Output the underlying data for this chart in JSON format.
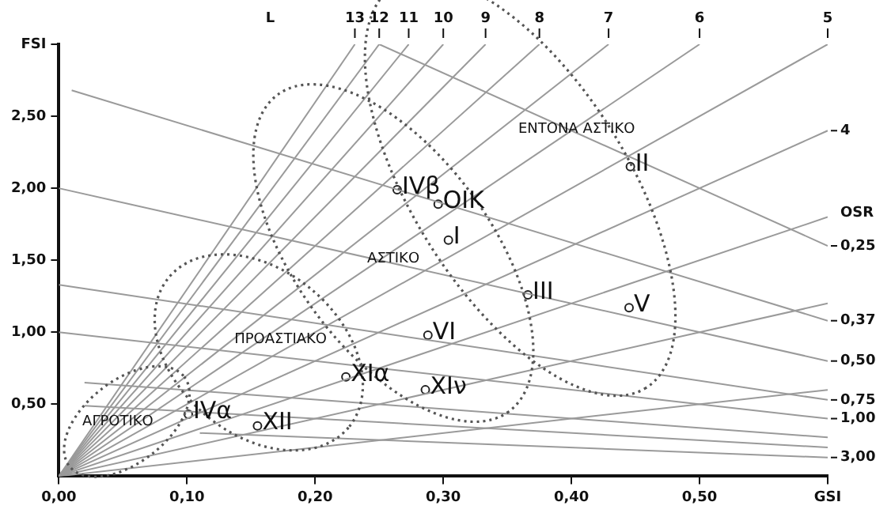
{
  "chart_data": {
    "type": "scatter",
    "x2label": "L",
    "y2label": "OSR",
    "xlim": [
      0,
      0.6
    ],
    "ylim": [
      0,
      3
    ],
    "xticks": [
      {
        "value": 0,
        "label": "0,00"
      },
      {
        "value": 0.1,
        "label": "0,10"
      },
      {
        "value": 0.2,
        "label": "0,20"
      },
      {
        "value": 0.3,
        "label": "0,30"
      },
      {
        "value": 0.4,
        "label": "0,40"
      },
      {
        "value": 0.5,
        "label": "0,50"
      },
      {
        "value": 0.6,
        "label": "GSI"
      }
    ],
    "yticks": [
      {
        "value": 0.5,
        "label": "0,50"
      },
      {
        "value": 1,
        "label": "1,00"
      },
      {
        "value": 1.5,
        "label": "1,50"
      },
      {
        "value": 2,
        "label": "2,00"
      },
      {
        "value": 2.5,
        "label": "2,50"
      },
      {
        "value": 3,
        "label": "FSI"
      }
    ],
    "grid": false,
    "legend": false,
    "annotations": [
      "ΑΓΡΟΤΙΚΟ",
      "ΠΡΟΑΣΤΙΑΚΟ",
      "ΑΣΤΙΚΟ",
      "ΕΝΤΟΝΑ ΑΣΤΙΚΟ"
    ],
    "series": [
      {
        "type": "line",
        "name": "13",
        "color": "#9a9a9a",
        "x": [
          0,
          0.231
        ],
        "values": [
          0,
          3
        ]
      },
      {
        "type": "line",
        "name": "12",
        "color": "#9a9a9a",
        "x": [
          0,
          0.25
        ],
        "values": [
          0,
          3
        ]
      },
      {
        "type": "line",
        "name": "11",
        "color": "#9a9a9a",
        "x": [
          0,
          0.273
        ],
        "values": [
          0,
          3
        ]
      },
      {
        "type": "line",
        "name": "10",
        "color": "#9a9a9a",
        "x": [
          0,
          0.3
        ],
        "values": [
          0,
          3
        ]
      },
      {
        "type": "line",
        "name": "9",
        "color": "#9a9a9a",
        "x": [
          0,
          0.333
        ],
        "values": [
          0,
          3
        ]
      },
      {
        "type": "line",
        "name": "8",
        "color": "#9a9a9a",
        "x": [
          0,
          0.375
        ],
        "values": [
          0,
          3
        ]
      },
      {
        "type": "line",
        "name": "7",
        "color": "#9a9a9a",
        "x": [
          0,
          0.429
        ],
        "values": [
          0,
          3
        ]
      },
      {
        "type": "line",
        "name": "6",
        "color": "#9a9a9a",
        "x": [
          0,
          0.5
        ],
        "values": [
          0,
          3
        ]
      },
      {
        "type": "line",
        "name": "5",
        "color": "#9a9a9a",
        "x": [
          0,
          0.6
        ],
        "values": [
          0,
          3
        ]
      },
      {
        "type": "line",
        "name": "4",
        "color": "#9a9a9a",
        "x": [
          0,
          0.6
        ],
        "values": [
          0,
          2.4
        ]
      },
      {
        "type": "line",
        "color": "#9a9a9a",
        "x": [
          0,
          0.6
        ],
        "values": [
          0,
          1.8
        ]
      },
      {
        "type": "line",
        "color": "#9a9a9a",
        "x": [
          0,
          0.6
        ],
        "values": [
          0,
          1.2
        ]
      },
      {
        "type": "line",
        "color": "#9a9a9a",
        "x": [
          0,
          0.6
        ],
        "values": [
          0,
          0.6
        ]
      },
      {
        "type": "line",
        "name": "0,25",
        "color": "#9a9a9a",
        "x": [
          0.25,
          0.6
        ],
        "values": [
          3,
          1.6
        ]
      },
      {
        "type": "line",
        "name": "0,37",
        "color": "#9a9a9a",
        "x": [
          0.01,
          0.6
        ],
        "values": [
          2.68,
          1.08
        ]
      },
      {
        "type": "line",
        "name": "0,50",
        "color": "#9a9a9a",
        "x": [
          0,
          0.6
        ],
        "values": [
          2,
          0.8
        ]
      },
      {
        "type": "line",
        "name": "0,75",
        "color": "#9a9a9a",
        "x": [
          0,
          0.6
        ],
        "values": [
          1.33,
          0.53
        ]
      },
      {
        "type": "line",
        "name": "1,00",
        "color": "#9a9a9a",
        "x": [
          0,
          0.6
        ],
        "values": [
          1,
          0.4
        ]
      },
      {
        "type": "line",
        "color": "#9a9a9a",
        "x": [
          0.02,
          0.6
        ],
        "values": [
          0.65,
          0.27
        ]
      },
      {
        "type": "line",
        "color": "#9a9a9a",
        "x": [
          0.02,
          0.6
        ],
        "values": [
          0.49,
          0.2
        ]
      },
      {
        "type": "line",
        "name": "3,00",
        "color": "#9a9a9a",
        "x": [
          0.11,
          0.6
        ],
        "values": [
          0.3,
          0.13
        ]
      },
      {
        "name": "IVβ",
        "color": "#222222",
        "marker": "circle",
        "x": [
          0.264
        ],
        "values": [
          1.99
        ]
      },
      {
        "name": "OIK",
        "color": "#222222",
        "marker": "circle",
        "x": [
          0.296
        ],
        "values": [
          1.89
        ]
      },
      {
        "name": "I",
        "color": "#222222",
        "marker": "circle",
        "x": [
          0.304
        ],
        "values": [
          1.64
        ]
      },
      {
        "name": "II",
        "color": "#222222",
        "marker": "circle",
        "x": [
          0.446
        ],
        "values": [
          2.15
        ]
      },
      {
        "name": "III",
        "color": "#222222",
        "marker": "circle",
        "x": [
          0.366
        ],
        "values": [
          1.26
        ]
      },
      {
        "name": "V",
        "color": "#222222",
        "marker": "circle",
        "x": [
          0.445
        ],
        "values": [
          1.17
        ]
      },
      {
        "name": "VI",
        "color": "#222222",
        "marker": "circle",
        "x": [
          0.288
        ],
        "values": [
          0.98
        ]
      },
      {
        "name": "XIα",
        "color": "#222222",
        "marker": "circle",
        "x": [
          0.224
        ],
        "values": [
          0.69
        ]
      },
      {
        "name": "XIν",
        "color": "#222222",
        "marker": "circle",
        "x": [
          0.286
        ],
        "values": [
          0.6
        ]
      },
      {
        "name": "IVα",
        "color": "#222222",
        "marker": "circle",
        "x": [
          0.101
        ],
        "values": [
          0.43
        ]
      },
      {
        "name": "XII",
        "color": "#222222",
        "marker": "circle",
        "x": [
          0.155
        ],
        "values": [
          0.35
        ]
      }
    ]
  }
}
